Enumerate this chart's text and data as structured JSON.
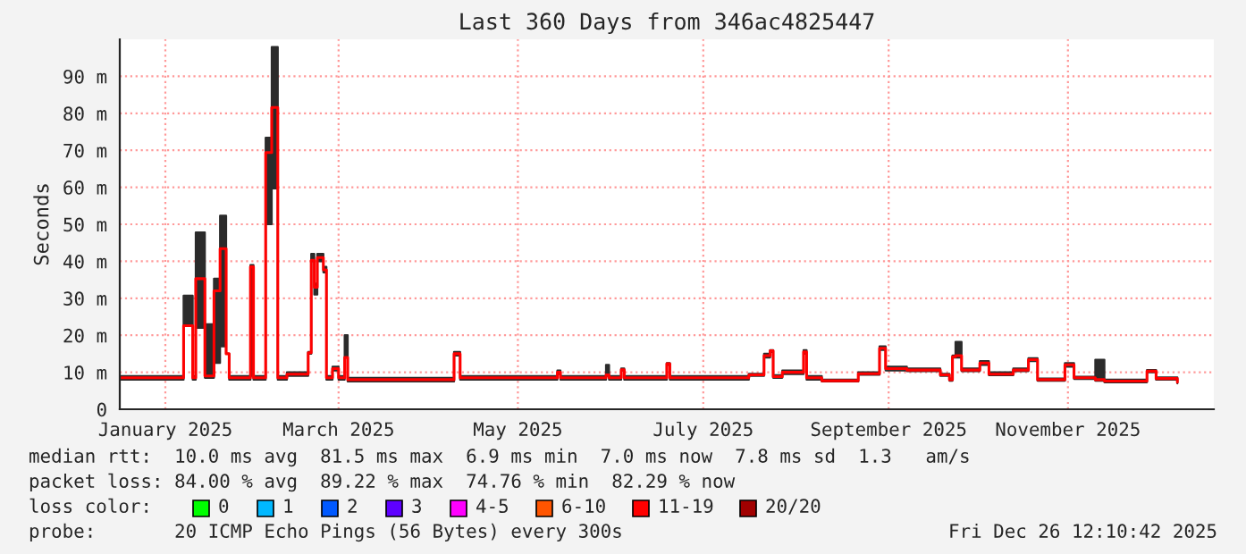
{
  "chart_data": {
    "type": "step",
    "title": "Last 360 Days from 346ac4825447",
    "ylabel": "Seconds",
    "x": [
      "2024-12-31",
      "2025-01-20",
      "2025-01-21",
      "2025-01-24",
      "2025-01-25",
      "2025-01-28",
      "2025-01-31",
      "2025-02-02",
      "2025-02-04",
      "2025-02-05",
      "2025-02-12",
      "2025-02-13",
      "2025-02-17",
      "2025-02-19",
      "2025-02-21",
      "2025-02-24",
      "2025-03-03",
      "2025-03-04",
      "2025-03-05",
      "2025-03-06",
      "2025-03-08",
      "2025-03-09",
      "2025-03-11",
      "2025-03-13",
      "2025-03-15",
      "2025-03-16",
      "2025-04-20",
      "2025-04-22",
      "2025-05-24",
      "2025-05-25",
      "2025-06-09",
      "2025-06-10",
      "2025-06-14",
      "2025-06-15",
      "2025-06-29",
      "2025-06-30",
      "2025-07-26",
      "2025-07-31",
      "2025-08-02",
      "2025-08-03",
      "2025-08-06",
      "2025-08-13",
      "2025-08-14",
      "2025-08-19",
      "2025-08-31",
      "2025-09-07",
      "2025-09-09",
      "2025-09-16",
      "2025-09-27",
      "2025-09-30",
      "2025-10-01",
      "2025-10-02",
      "2025-10-04",
      "2025-10-10",
      "2025-10-13",
      "2025-10-21",
      "2025-10-26",
      "2025-10-29",
      "2025-11-07",
      "2025-11-10",
      "2025-11-17",
      "2025-11-20",
      "2025-12-04",
      "2025-12-07",
      "2025-12-14"
    ],
    "series": [
      {
        "color": "#ff0000",
        "line_style": "solid",
        "values": [
          8.5,
          8.5,
          22.6,
          8.5,
          35.3,
          9,
          32,
          43.4,
          15,
          8.5,
          38.5,
          8.5,
          69.4,
          81.6,
          8.5,
          9.5,
          15.3,
          40.3,
          33,
          41,
          37.7,
          8.5,
          11,
          8.5,
          14,
          8,
          15,
          8.5,
          10,
          8.5,
          9.3,
          8.5,
          10.7,
          8.5,
          12.3,
          8.5,
          9.3,
          14.5,
          15.8,
          8.8,
          10,
          15.5,
          8.5,
          7.7,
          9.6,
          16.5,
          11,
          10.6,
          9.3,
          8,
          14.2,
          14.5,
          10.6,
          12.5,
          9.5,
          10.6,
          13.4,
          8,
          12,
          8.5,
          8,
          7.6,
          10.3,
          8.3,
          7.3
        ],
        "lower": [
          8,
          8,
          22.6,
          8,
          22,
          8.5,
          12.5,
          17,
          15,
          8,
          9,
          8,
          50,
          59.7,
          8,
          9,
          15,
          40,
          31,
          40,
          37,
          8,
          10.5,
          8,
          14,
          7.5,
          14.5,
          8,
          9.5,
          8,
          9,
          8,
          10.5,
          8,
          12,
          8,
          9,
          14,
          15.5,
          8.5,
          9.5,
          15,
          8,
          7.5,
          9.3,
          16,
          10.5,
          10.3,
          9,
          7.7,
          14,
          14,
          10.3,
          12,
          9.2,
          10.3,
          13,
          7.7,
          11.5,
          8.2,
          7.7,
          7.3,
          10,
          8,
          7
        ],
        "upper": [
          9,
          9,
          30.7,
          9,
          47.8,
          23,
          35.3,
          52.3,
          15,
          9,
          39,
          9,
          73.4,
          97.9,
          9,
          10,
          15.5,
          42,
          34,
          42,
          38.5,
          9,
          11.5,
          9,
          20,
          8.5,
          15.5,
          9,
          10.5,
          9,
          12,
          9,
          11,
          9,
          12.5,
          9,
          9.6,
          15,
          16,
          9.2,
          10.5,
          16,
          9,
          8,
          10,
          17,
          11.5,
          11,
          9.6,
          8.3,
          14.5,
          18.2,
          11,
          13,
          10,
          11,
          13.8,
          8.3,
          12.5,
          8.8,
          13.4,
          8,
          10.6,
          8.6,
          7.6
        ]
      }
    ],
    "xlim": [
      "2024-12-31",
      "2025-12-26"
    ],
    "xticks": [
      {
        "value": "2025-01-15",
        "label": "January 2025"
      },
      {
        "value": "2025-03-13",
        "label": "March 2025"
      },
      {
        "value": "2025-05-11",
        "label": "May 2025"
      },
      {
        "value": "2025-07-11",
        "label": "July 2025"
      },
      {
        "value": "2025-09-10",
        "label": "September 2025"
      },
      {
        "value": "2025-11-08",
        "label": "November 2025"
      }
    ],
    "ylim": [
      0,
      100
    ],
    "yticks": [
      0,
      {
        "value": 10,
        "label": "10 m"
      },
      {
        "value": 20,
        "label": "20 m"
      },
      {
        "value": 30,
        "label": "30 m"
      },
      {
        "value": 40,
        "label": "40 m"
      },
      {
        "value": 50,
        "label": "50 m"
      },
      {
        "value": 60,
        "label": "60 m"
      },
      {
        "value": 70,
        "label": "70 m"
      },
      {
        "value": 80,
        "label": "80 m"
      },
      {
        "value": 90,
        "label": "90 m"
      }
    ],
    "grid": true,
    "annotations": [
      "median rtt:  10.0 ms avg  81.5 ms max  6.9 ms min  7.0 ms now  7.8 ms sd  1.3   am/s",
      "packet loss: 84.00 % avg  89.22 % max  74.76 % min  82.29 % now",
      "loss color:",
      "0",
      "1",
      "2",
      "3",
      "4-5",
      "6-10",
      "11-19",
      "20/20",
      "probe:       20 ICMP Echo Pings (56 Bytes) every 300s",
      "Fri Dec 26 12:10:42 2025"
    ]
  }
}
